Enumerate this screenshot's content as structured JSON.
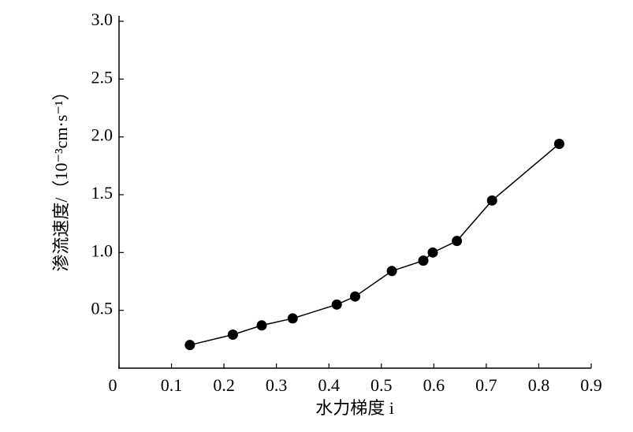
{
  "chart_data": {
    "type": "line",
    "x_label": "水力梯度 i",
    "y_label": "渗流速度/（10⁻³cm·s⁻¹）",
    "x": [
      0.135,
      0.217,
      0.272,
      0.331,
      0.415,
      0.45,
      0.52,
      0.58,
      0.598,
      0.644,
      0.711,
      0.839
    ],
    "series": [
      {
        "color": "#000000",
        "values": [
          0.2,
          0.29,
          0.37,
          0.43,
          0.55,
          0.62,
          0.84,
          0.93,
          1.0,
          1.1,
          1.45,
          1.94
        ]
      }
    ],
    "xlim": [
      0,
      0.9
    ],
    "xticks": [
      0,
      0.1,
      0.2,
      0.3,
      0.4,
      0.5,
      0.6,
      0.7,
      0.8,
      0.9
    ],
    "ylim": [
      0,
      3.0
    ],
    "yticks": [
      0.5,
      {
        "value": 1,
        "label": "1.0"
      },
      1.5,
      {
        "value": 2,
        "label": "2.0"
      },
      2.5,
      {
        "value": 3,
        "label": "3.0"
      }
    ],
    "grid": false
  }
}
